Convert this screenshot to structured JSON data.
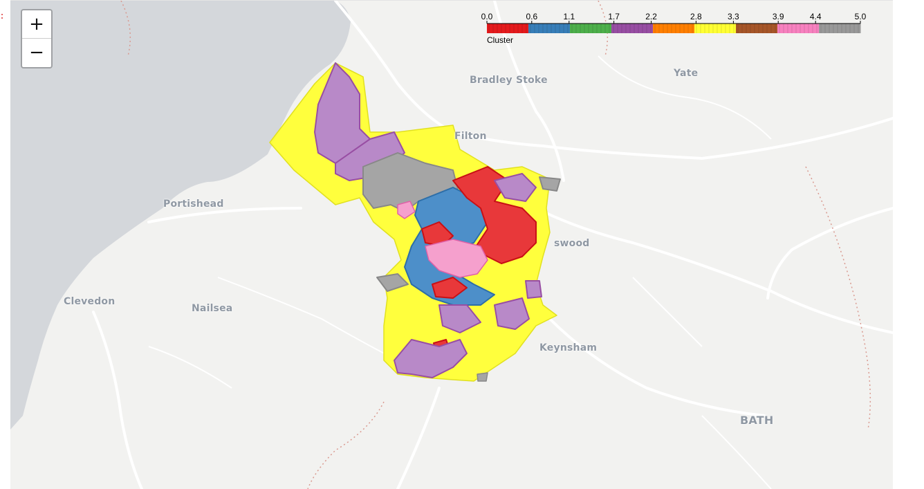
{
  "map": {
    "places": [
      {
        "id": "bradley-stoke",
        "name": "Bradley Stoke"
      },
      {
        "id": "yate",
        "name": "Yate"
      },
      {
        "id": "filton",
        "name": "Filton"
      },
      {
        "id": "portishead",
        "name": "Portishead"
      },
      {
        "id": "kingswood",
        "name": "swood"
      },
      {
        "id": "clevedon",
        "name": "Clevedon"
      },
      {
        "id": "nailsea",
        "name": "Nailsea"
      },
      {
        "id": "keynsham",
        "name": "Keynsham"
      },
      {
        "id": "bath",
        "name": "BATH"
      }
    ],
    "colors": {
      "land": "#f2f2f0",
      "water": "#d4d7db",
      "road": "#ffffff",
      "boundary": "#d9998f"
    }
  },
  "zoom": {
    "in_label": "+",
    "out_label": "−"
  },
  "legend": {
    "caption": "Cluster",
    "ticks": [
      "0.0",
      "0.6",
      "1.1",
      "1.7",
      "2.2",
      "2.8",
      "3.3",
      "3.9",
      "4.4",
      "5.0"
    ],
    "min": 0.0,
    "max": 5.0,
    "colors": [
      "#e41a1c",
      "#377eb8",
      "#4daf4a",
      "#984ea3",
      "#ff7f00",
      "#ffff33",
      "#a65628",
      "#f781bf",
      "#999999"
    ]
  }
}
